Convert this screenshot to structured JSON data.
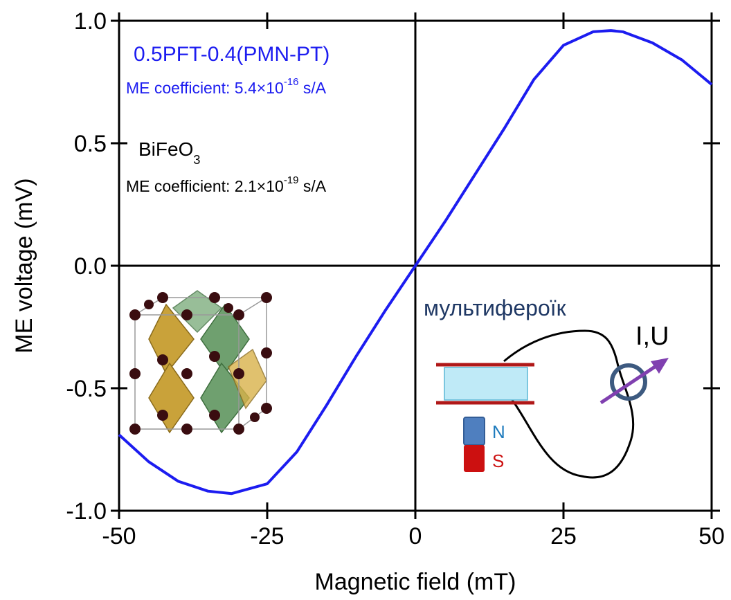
{
  "chart_data": {
    "type": "line",
    "x_label": "Magnetic field (mT)",
    "y_label": "ME voltage (mV)",
    "x": [
      -50,
      -45,
      -40,
      -35,
      -31,
      -25,
      -20,
      -15,
      -10,
      -5,
      0,
      5,
      10,
      15,
      20,
      25,
      30,
      33,
      35,
      40,
      45,
      50
    ],
    "series": [
      {
        "name": "0.5PFT-0.4(PMN-PT)",
        "color": "#1c1cf0",
        "values": [
          -0.69,
          -0.8,
          -0.88,
          -0.92,
          -0.93,
          -0.89,
          -0.76,
          -0.57,
          -0.37,
          -0.18,
          0.0,
          0.18,
          0.37,
          0.56,
          0.76,
          0.9,
          0.955,
          0.96,
          0.955,
          0.91,
          0.84,
          0.74
        ]
      }
    ],
    "xlim": [
      -50,
      50
    ],
    "ylim": [
      -1,
      1
    ],
    "xticks": [
      -50,
      -25,
      0,
      25,
      50
    ],
    "yticks": [
      {
        "value": -1,
        "label": "-1.0"
      },
      -0.5,
      {
        "value": 0,
        "label": "0.0"
      },
      0.5,
      {
        "value": 1,
        "label": "1.0"
      }
    ],
    "annotations": {
      "sample1": {
        "name": "0.5PFT-0.4(PMN-PT)",
        "coef": "ME coefficient: 5.4×10",
        "exp": "-16",
        "unit": " s/A"
      },
      "sample2": {
        "name": "BiFeO",
        "sub": "3",
        "coef": "ME coefficient: 2.1×10",
        "exp": "-19",
        "unit": " s/A"
      },
      "diagram": {
        "title": "мультифероїк",
        "meter": "I,U",
        "north": "N",
        "south": "S"
      }
    }
  }
}
